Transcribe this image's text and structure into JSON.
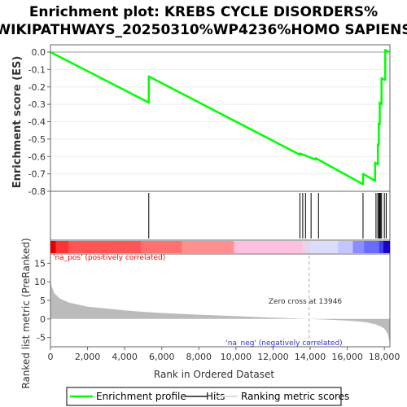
{
  "title_line1": "Enrichment plot: KREBS CYCLE DISORDERS%",
  "title_line2": "WIKIPATHWAYS_20250310%WP4236%HOMO SAPIENS",
  "colors": {
    "es_line": "#00ff00",
    "hits": "#000000",
    "metric_fill": "#bbbbbb",
    "pos_label": "#ff0000",
    "neg_label": "#0000ff"
  },
  "chart_data": {
    "type": "line",
    "total_genes": 18300,
    "es_panel": {
      "ylabel": "Enrichment score (ES)",
      "ylim": [
        -0.8,
        0.0
      ],
      "yticks": [
        "0.0",
        "-0.1",
        "-0.2",
        "-0.3",
        "-0.4",
        "-0.5",
        "-0.6",
        "-0.7",
        "-0.8"
      ],
      "ytick_values": [
        0.0,
        -0.1,
        -0.2,
        -0.3,
        -0.4,
        -0.5,
        -0.6,
        -0.7,
        -0.8
      ],
      "series": [
        {
          "name": "Enrichment profile",
          "x": [
            0,
            5300,
            5300,
            13450,
            13450,
            14300,
            14300,
            16850,
            16850,
            17500,
            17500,
            17650,
            17650,
            17700,
            17700,
            17750,
            17750,
            17850,
            17850,
            18050,
            18050,
            18250
          ],
          "y": [
            0.0,
            -0.29,
            -0.14,
            -0.59,
            -0.583,
            -0.617,
            -0.61,
            -0.76,
            -0.7,
            -0.74,
            -0.635,
            -0.645,
            -0.53,
            -0.535,
            -0.41,
            -0.415,
            -0.29,
            -0.3,
            -0.15,
            -0.16,
            0.012,
            0.0
          ]
        }
      ]
    },
    "hits": [
      5300,
      13450,
      13600,
      13750,
      14050,
      14450,
      16850,
      17550,
      17650,
      17700,
      17750,
      17800,
      17850,
      18000,
      18100
    ],
    "ranking_bar": {
      "segments": [
        {
          "from": 0,
          "to": 300,
          "color": "#e00000"
        },
        {
          "from": 300,
          "to": 1000,
          "color": "#ff3333"
        },
        {
          "from": 1000,
          "to": 4900,
          "color": "#ff5555"
        },
        {
          "from": 4900,
          "to": 7100,
          "color": "#ff7070"
        },
        {
          "from": 7100,
          "to": 9900,
          "color": "#ff9090"
        },
        {
          "from": 9900,
          "to": 13600,
          "color": "#ffc0e0"
        },
        {
          "from": 13600,
          "to": 14000,
          "color": "#e6d4ea"
        },
        {
          "from": 14000,
          "to": 15500,
          "color": "#dcdcff"
        },
        {
          "from": 15500,
          "to": 16300,
          "color": "#c4c4ff"
        },
        {
          "from": 16300,
          "to": 16900,
          "color": "#8c8cff"
        },
        {
          "from": 16900,
          "to": 17700,
          "color": "#6a6aff"
        },
        {
          "from": 17700,
          "to": 17950,
          "color": "#4040ee"
        },
        {
          "from": 17950,
          "to": 18300,
          "color": "#1a00c8"
        }
      ]
    },
    "metric_panel": {
      "ylabel": "Ranked list metric (PreRanked)",
      "xlabel": "Rank in Ordered Dataset",
      "ylim": [
        -7.5,
        17.5
      ],
      "yticks": [
        "15",
        "10",
        "5",
        "0",
        "-5"
      ],
      "ytick_values": [
        15,
        10,
        5,
        0,
        -5
      ],
      "xticks": [
        "0",
        "2,000",
        "4,000",
        "6,000",
        "8,000",
        "10,000",
        "12,000",
        "14,000",
        "16,000",
        "18,000"
      ],
      "xtick_values": [
        0,
        2000,
        4000,
        6000,
        8000,
        10000,
        12000,
        14000,
        16000,
        18000
      ],
      "x": [
        0,
        50,
        200,
        500,
        1000,
        2000,
        3000,
        4000,
        5000,
        6000,
        8000,
        10000,
        12000,
        13000,
        13946,
        15000,
        16000,
        16500,
        17000,
        17500,
        17800,
        18000,
        18100,
        18200,
        18250,
        18300
      ],
      "y": [
        12,
        9,
        7,
        5.5,
        4.4,
        3.3,
        2.8,
        2.3,
        1.9,
        1.6,
        1.15,
        0.75,
        0.35,
        0.18,
        0,
        -0.2,
        -0.45,
        -0.65,
        -0.9,
        -1.4,
        -2.0,
        -2.6,
        -3.3,
        -4.2,
        -5.5,
        -6.5
      ],
      "zero_cross_label": "Zero cross at 13946",
      "zero_cross": 13946,
      "pos_label": "'na_pos' (positively correlated)",
      "neg_label": "'na_neg' (negatively correlated)"
    }
  },
  "legend": {
    "items": [
      {
        "label": "Enrichment profile"
      },
      {
        "label": "Hits"
      },
      {
        "label": "Ranking metric scores"
      }
    ]
  }
}
